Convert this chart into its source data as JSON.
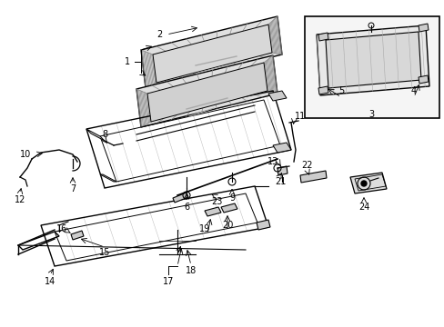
{
  "bg_color": "#ffffff",
  "fig_width": 4.89,
  "fig_height": 3.6,
  "dpi": 100,
  "label_fs": 7.0,
  "line_color": "#000000",
  "hatch_color": "#999999",
  "part_fill": "#cccccc"
}
